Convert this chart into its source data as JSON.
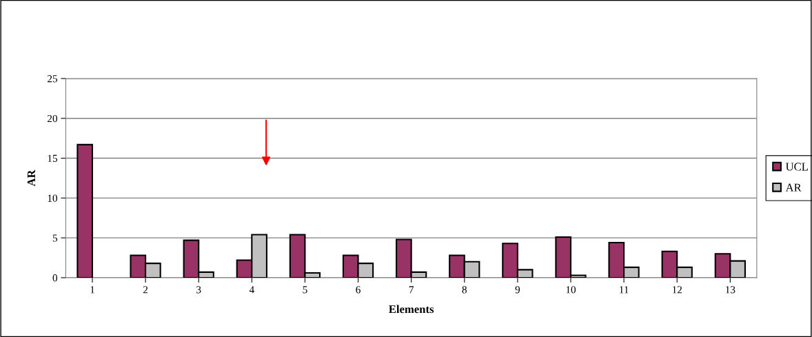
{
  "chart_data": {
    "type": "bar",
    "xlabel": "Elements",
    "ylabel": "AR",
    "categories": [
      "1",
      "2",
      "3",
      "4",
      "5",
      "6",
      "7",
      "8",
      "9",
      "10",
      "11",
      "12",
      "13"
    ],
    "series": [
      {
        "name": "UCL",
        "color": "#993366",
        "values": [
          16.7,
          2.8,
          4.7,
          2.2,
          5.4,
          2.8,
          4.8,
          2.8,
          4.3,
          5.1,
          4.4,
          3.3,
          3.0
        ]
      },
      {
        "name": "AR",
        "color": "#c0c0c0",
        "values": [
          null,
          1.8,
          0.7,
          5.4,
          0.6,
          1.8,
          0.7,
          2.0,
          1.0,
          0.3,
          1.3,
          1.3,
          2.1
        ]
      }
    ],
    "ylim": [
      0,
      25
    ],
    "yticks": [
      0,
      5,
      10,
      15,
      20,
      25
    ],
    "grid": "y",
    "legend": "right"
  }
}
